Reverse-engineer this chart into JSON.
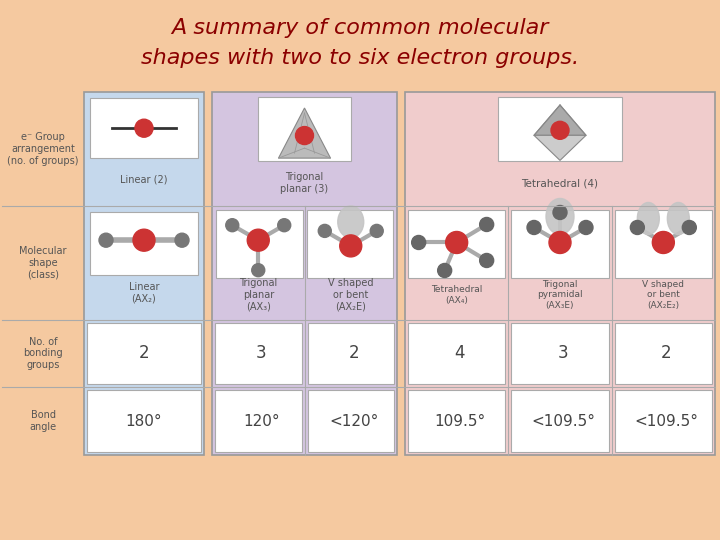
{
  "title_line1": "A summary of common molecular",
  "title_line2": "shapes with two to six electron groups.",
  "title_color": "#8B0000",
  "title_fontsize": 16,
  "bg_color": "#F5C9A0",
  "col1_bg": "#C5D8EC",
  "col2_bg": "#D4C5E0",
  "col3_bg": "#F0CCCC",
  "cell_bg": "#FFFFFF",
  "row_labels": [
    "e⁻ Group\narrangement\n(no. of groups)",
    "Molecular\nshape\n(class)",
    "No. of\nbonding\ngroups",
    "Bond\nangle"
  ],
  "col1_arrangement": "Linear (2)",
  "col1_shape": "Linear\n(AX₂)",
  "col1_bonding": "2",
  "col1_angle": "180°",
  "col2_arrangement": "Trigonal\nplanar (3)",
  "col2_shapes": [
    "Trigonal\nplanar\n(AX₃)",
    "V shaped\nor bent\n(AX₂E)"
  ],
  "col2_bonding": [
    "3",
    "2"
  ],
  "col2_angles": [
    "120°",
    "<120°"
  ],
  "col3_arrangement": "Tetrahedral (4)",
  "col3_shapes": [
    "Tetrahedral\n(AX₄)",
    "Trigonal\npyramidal\n(AX₃E)",
    "V shaped\nor bent\n(AX₂E₂)"
  ],
  "col3_bonding": [
    "4",
    "3",
    "2"
  ],
  "col3_angles": [
    "109.5°",
    "<109.5°",
    "<109.5°"
  ],
  "red_color": "#CC3333",
  "gray_color": "#888888",
  "dark_gray": "#555555",
  "text_color": "#444444",
  "label_color": "#555555"
}
